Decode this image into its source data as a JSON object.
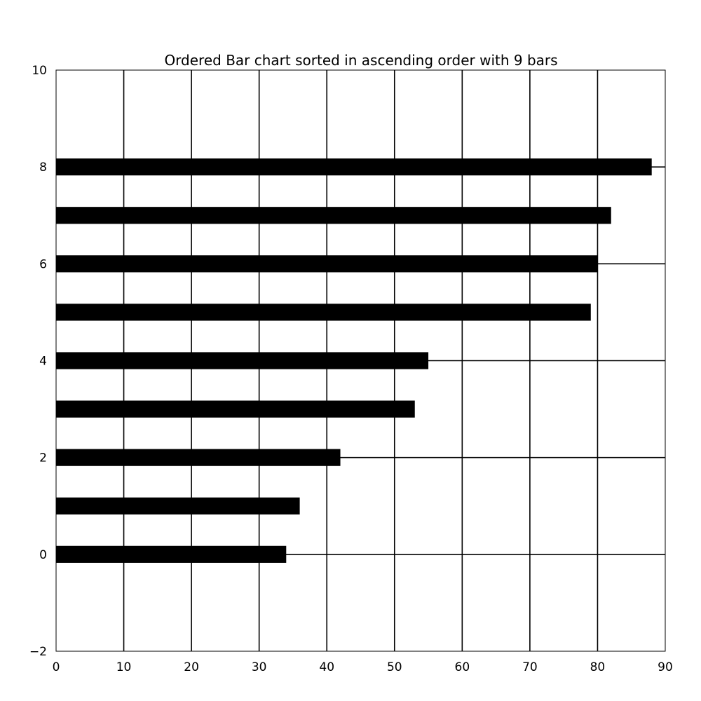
{
  "chart_data": {
    "type": "bar",
    "orientation": "horizontal",
    "title": "Ordered Bar chart sorted in ascending order with 9 bars",
    "xlabel": "",
    "ylabel": "",
    "xlim": [
      0,
      90
    ],
    "ylim": [
      -2,
      10
    ],
    "xticks": [
      0,
      10,
      20,
      30,
      40,
      50,
      60,
      70,
      80,
      90
    ],
    "xtick_labels": [
      "0",
      "10",
      "20",
      "30",
      "40",
      "50",
      "60",
      "70",
      "80",
      "90"
    ],
    "yticks": [
      -2,
      0,
      2,
      4,
      6,
      8,
      10
    ],
    "ytick_labels": [
      "−2",
      "0",
      "2",
      "4",
      "6",
      "8",
      "10"
    ],
    "categories": [
      0,
      1,
      2,
      3,
      4,
      5,
      6,
      7,
      8
    ],
    "values": [
      34,
      36,
      42,
      53,
      55,
      79,
      80,
      82,
      88
    ],
    "bar_height": 0.35,
    "grid": true,
    "grid_x_lines": [
      10,
      20,
      30,
      40,
      50,
      60,
      70,
      80
    ],
    "grid_y_lines": [
      0,
      2,
      4,
      6,
      8
    ],
    "legend": "none",
    "colors": {
      "bar": "#000000",
      "grid": "#000000",
      "frame": "#000000",
      "background": "#ffffff"
    }
  }
}
